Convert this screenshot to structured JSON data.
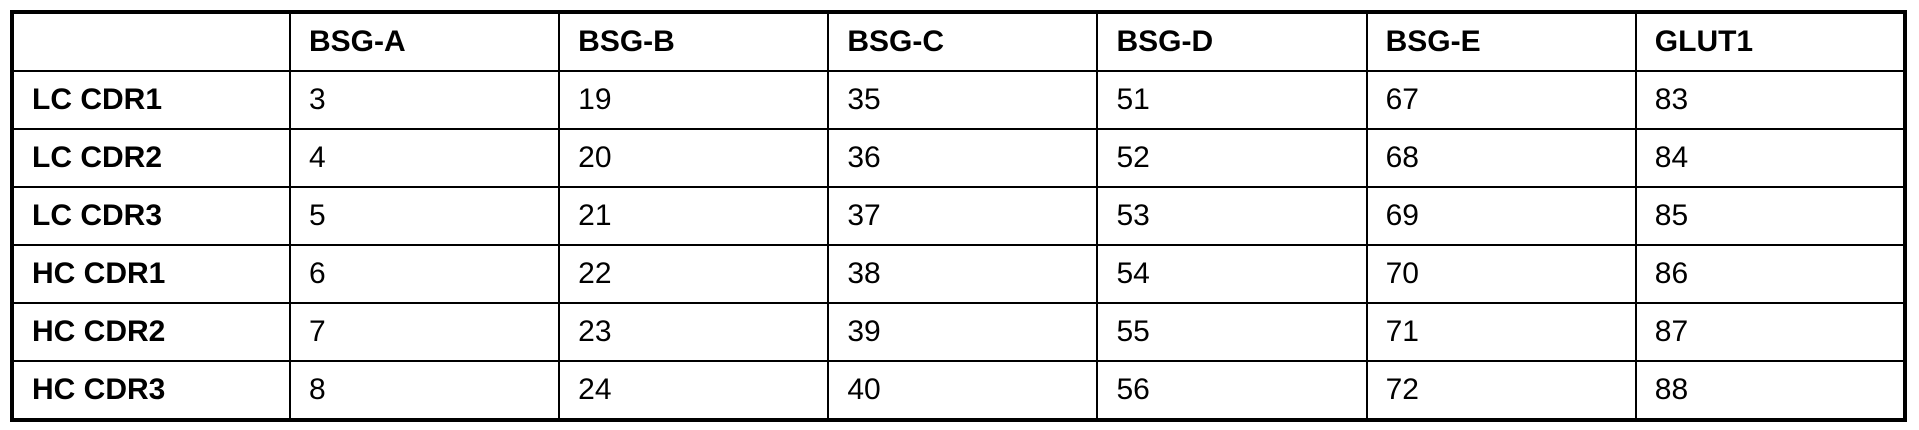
{
  "table": {
    "columns": [
      "",
      "BSG-A",
      "BSG-B",
      "BSG-C",
      "BSG-D",
      "BSG-E",
      "GLUT1"
    ],
    "rows": [
      {
        "label": "LC CDR1",
        "values": [
          "3",
          "19",
          "35",
          "51",
          "67",
          "83"
        ]
      },
      {
        "label": "LC CDR2",
        "values": [
          "4",
          "20",
          "36",
          "52",
          "68",
          "84"
        ]
      },
      {
        "label": "LC CDR3",
        "values": [
          "5",
          "21",
          "37",
          "53",
          "69",
          "85"
        ]
      },
      {
        "label": "HC CDR1",
        "values": [
          "6",
          "22",
          "38",
          "54",
          "70",
          "86"
        ]
      },
      {
        "label": "HC CDR2",
        "values": [
          "7",
          "23",
          "39",
          "55",
          "71",
          "87"
        ]
      },
      {
        "label": "HC CDR3",
        "values": [
          "8",
          "24",
          "40",
          "56",
          "72",
          "88"
        ]
      }
    ]
  }
}
